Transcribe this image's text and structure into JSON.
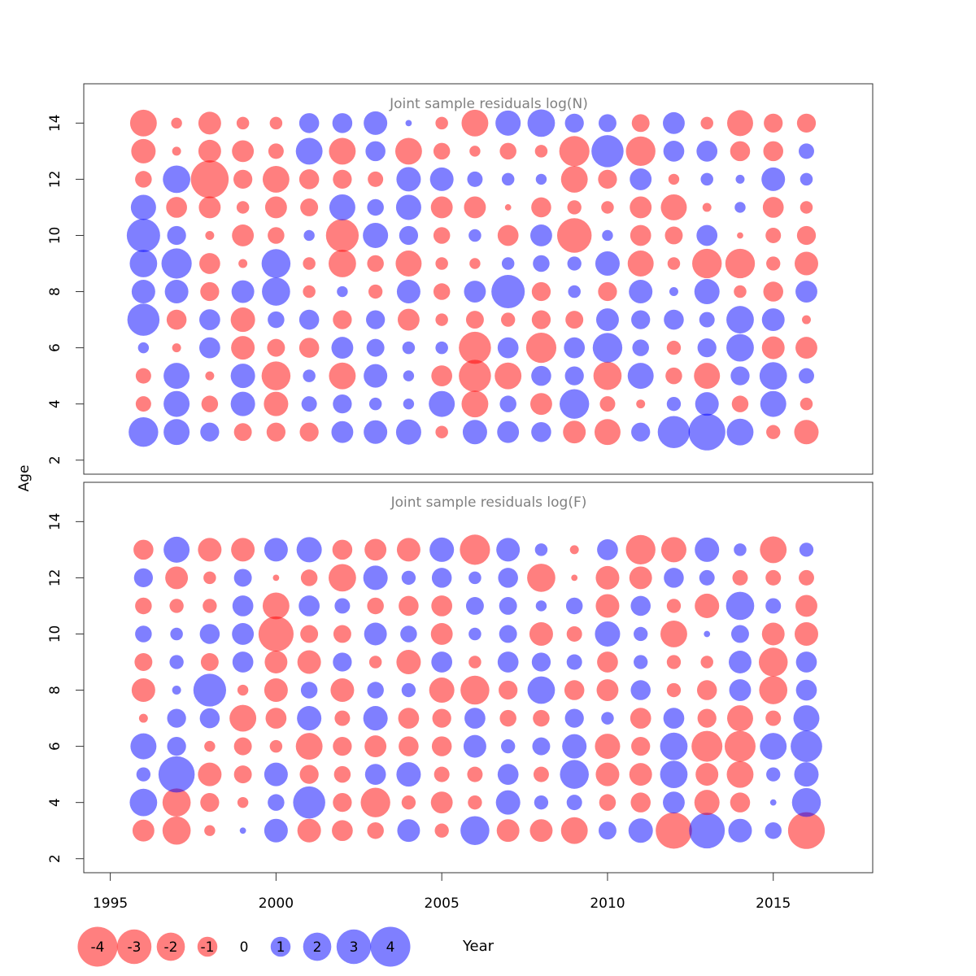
{
  "chart_data": [
    {
      "type": "scatter",
      "subtype": "bubble",
      "title": "Joint sample residuals log(N)",
      "years": [
        1996,
        1997,
        1998,
        1999,
        2000,
        2001,
        2002,
        2003,
        2004,
        2005,
        2006,
        2007,
        2008,
        2009,
        2010,
        2011,
        2012,
        2013,
        2014,
        2015,
        2016
      ],
      "ages": [
        3,
        4,
        5,
        6,
        7,
        8,
        9,
        10,
        11,
        12,
        13,
        14
      ],
      "ylim": [
        1.5,
        15.4
      ],
      "yticks": [
        2,
        4,
        6,
        8,
        10,
        12,
        14
      ],
      "residuals": [
        [
          2.2,
          -0.6,
          -0.6,
          0.3,
          2.6,
          1.4,
          1.9,
          2.8,
          1.6,
          -0.7,
          -1.5,
          -1.8
        ],
        [
          1.7,
          1.7,
          1.7,
          -0.2,
          -1.0,
          1.4,
          2.3,
          0.9,
          -1.1,
          1.9,
          -0.2,
          -0.3
        ],
        [
          0.9,
          -0.7,
          -0.2,
          1.1,
          1.1,
          -0.9,
          -1.1,
          -0.2,
          -1.2,
          -3.6,
          -1.3,
          -1.3
        ],
        [
          -0.8,
          1.5,
          1.5,
          -1.4,
          -1.5,
          1.3,
          -0.2,
          -1.2,
          -0.4,
          -0.9,
          -1.2,
          -0.4
        ],
        [
          -0.9,
          -1.5,
          -2.1,
          -0.8,
          0.7,
          2.0,
          2.1,
          -0.7,
          -1.2,
          -1.8,
          -0.6,
          -0.4
        ],
        [
          -0.9,
          0.6,
          0.4,
          -1.0,
          1.0,
          -0.4,
          -0.4,
          0.3,
          -0.8,
          -1.0,
          1.8,
          1.0
        ],
        [
          1.2,
          0.9,
          -1.8,
          1.2,
          -0.9,
          0.3,
          -1.9,
          -2.7,
          1.7,
          -0.9,
          -1.8,
          1.0
        ],
        [
          1.4,
          0.4,
          1.4,
          0.8,
          0.9,
          -0.5,
          -0.7,
          1.6,
          0.7,
          -0.6,
          1.0,
          1.4
        ],
        [
          1.6,
          0.3,
          0.3,
          0.4,
          -1.2,
          1.4,
          -1.7,
          0.9,
          1.6,
          1.5,
          -1.8,
          0.1
        ],
        [
          -0.4,
          1.7,
          -1.1,
          0.4,
          -0.4,
          -0.7,
          -0.4,
          -0.7,
          -1.2,
          1.4,
          -0.7,
          -0.4
        ],
        [
          1.5,
          -1.8,
          -2.6,
          -2.6,
          -0.8,
          1.2,
          -0.3,
          0.4,
          -1.2,
          0.6,
          -0.3,
          -1.8
        ],
        [
          1.2,
          0.7,
          -1.8,
          1.1,
          -0.5,
          2.8,
          0.4,
          -1.1,
          -0.1,
          0.4,
          -0.7,
          1.6
        ],
        [
          1.0,
          -1.2,
          1.0,
          -2.3,
          -0.9,
          -0.9,
          0.7,
          1.2,
          -1.0,
          0.3,
          -0.4,
          1.9
        ],
        [
          -1.3,
          2.2,
          0.9,
          1.1,
          -0.8,
          0.4,
          0.5,
          -3.0,
          -0.5,
          -1.8,
          -2.3,
          0.9
        ],
        [
          -1.7,
          -0.6,
          -2.0,
          2.2,
          1.3,
          -0.9,
          1.5,
          0.3,
          -0.4,
          -0.9,
          2.6,
          0.8
        ],
        [
          0.9,
          -0.2,
          1.7,
          0.7,
          0.9,
          1.4,
          -1.7,
          -1.1,
          -1.2,
          1.2,
          -2.2,
          -0.8
        ],
        [
          2.6,
          0.5,
          -0.7,
          -0.5,
          1.0,
          0.2,
          -0.4,
          -0.8,
          -1.7,
          -0.3,
          1.1,
          1.2
        ],
        [
          3.4,
          1.4,
          -1.7,
          0.9,
          0.6,
          1.6,
          -2.2,
          1.1,
          -0.2,
          0.4,
          1.1,
          -0.4
        ],
        [
          1.8,
          -0.7,
          0.9,
          1.9,
          1.9,
          -0.4,
          -2.2,
          -0.1,
          0.3,
          0.2,
          -1.0,
          -1.7
        ],
        [
          -0.5,
          1.7,
          1.9,
          -1.3,
          1.3,
          -1.0,
          -0.5,
          -0.6,
          -1.1,
          1.4,
          -1.0,
          -0.9
        ],
        [
          -1.5,
          -0.4,
          0.6,
          -1.2,
          -0.2,
          1.2,
          -1.4,
          -0.9,
          -0.4,
          0.4,
          0.6,
          -0.9
        ]
      ]
    },
    {
      "type": "scatter",
      "subtype": "bubble",
      "title": "Joint sample residuals log(F)",
      "years": [
        1996,
        1997,
        1998,
        1999,
        2000,
        2001,
        2002,
        2003,
        2004,
        2005,
        2006,
        2007,
        2008,
        2009,
        2010,
        2011,
        2012,
        2013,
        2014,
        2015,
        2016
      ],
      "ages": [
        3,
        4,
        5,
        6,
        7,
        8,
        9,
        10,
        11,
        12,
        13
      ],
      "ylim": [
        1.5,
        15.4
      ],
      "yticks": [
        2,
        4,
        6,
        8,
        10,
        12,
        14
      ],
      "residuals": [
        [
          -1.2,
          1.9,
          0.5,
          1.7,
          -0.2,
          -1.4,
          -0.8,
          0.7,
          -0.7,
          0.9,
          -1.0
        ],
        [
          -2.0,
          -2.0,
          3.3,
          0.9,
          0.9,
          0.2,
          0.5,
          0.4,
          -0.5,
          -1.3,
          1.7
        ],
        [
          -0.3,
          -0.9,
          -1.4,
          -0.3,
          1.0,
          2.7,
          -0.8,
          1.0,
          -0.5,
          -0.4,
          -1.4
        ],
        [
          0.1,
          -0.3,
          -0.8,
          -0.8,
          -1.8,
          -0.3,
          1.1,
          1.2,
          1.1,
          0.8,
          -1.4
        ],
        [
          1.4,
          0.7,
          1.4,
          -0.4,
          -1.1,
          -1.4,
          -1.3,
          -3.1,
          -1.8,
          -0.1,
          1.4
        ],
        [
          -1.4,
          2.6,
          -0.9,
          -1.8,
          1.5,
          0.7,
          -1.4,
          -0.8,
          1.1,
          -0.7,
          1.6
        ],
        [
          -1.1,
          -0.9,
          -0.7,
          -0.9,
          -0.6,
          -1.4,
          0.9,
          -0.8,
          0.6,
          -1.9,
          -1.0
        ],
        [
          -0.7,
          -2.2,
          1.1,
          -1.2,
          1.5,
          0.7,
          -0.4,
          1.3,
          -0.7,
          1.5,
          -1.2
        ],
        [
          1.3,
          -0.5,
          1.5,
          -1.0,
          -1.1,
          0.5,
          -1.5,
          0.7,
          -1.0,
          0.5,
          -1.4
        ],
        [
          -0.5,
          -1.2,
          -0.6,
          -1.0,
          -0.9,
          -1.6,
          1.1,
          -1.2,
          -1.1,
          1.0,
          1.5
        ],
        [
          2.1,
          -0.5,
          -0.6,
          1.3,
          1.1,
          -2.1,
          -0.4,
          0.4,
          0.8,
          0.4,
          -2.3
        ],
        [
          -1.3,
          1.5,
          1.1,
          0.5,
          -0.7,
          -0.9,
          1.1,
          0.8,
          0.8,
          1.0,
          1.4
        ],
        [
          -1.3,
          0.5,
          -0.6,
          0.8,
          -0.7,
          1.9,
          0.9,
          -1.4,
          0.3,
          -2.0,
          0.4
        ],
        [
          -1.8,
          0.6,
          2.1,
          1.5,
          0.9,
          -1.0,
          0.6,
          -0.6,
          0.7,
          -0.1,
          -0.2
        ],
        [
          0.8,
          -0.7,
          -1.4,
          -1.6,
          0.4,
          -1.2,
          -1.1,
          1.6,
          -1.4,
          -1.4,
          1.1
        ],
        [
          1.5,
          -1.0,
          -1.3,
          -0.9,
          -1.1,
          1.0,
          0.5,
          0.5,
          1.0,
          -1.3,
          -2.2
        ],
        [
          -3.3,
          1.2,
          1.9,
          1.9,
          1.1,
          -0.5,
          -0.5,
          -1.8,
          -0.5,
          1.0,
          -1.6
        ],
        [
          3.2,
          -1.6,
          -1.3,
          -2.4,
          -0.9,
          -1.0,
          -0.4,
          0.1,
          -1.5,
          0.6,
          1.5
        ],
        [
          1.4,
          -1.0,
          -1.8,
          -2.4,
          -1.7,
          1.2,
          1.3,
          0.8,
          2.0,
          -0.6,
          0.4
        ],
        [
          0.7,
          0.1,
          0.5,
          1.8,
          -0.6,
          -2.0,
          -2.1,
          -1.3,
          0.6,
          -0.6,
          -1.8
        ],
        [
          -3.4,
          2.1,
          1.5,
          2.5,
          1.7,
          1.1,
          1.1,
          -1.4,
          -1.2,
          -0.6,
          0.5
        ]
      ]
    }
  ],
  "axes": {
    "xlabel": "Year",
    "ylabel": "Age",
    "xlim": [
      1994.2,
      2018.0
    ],
    "xticks": [
      1995,
      2000,
      2005,
      2010,
      2015
    ],
    "xtick_labels": [
      "1995",
      "2000",
      "2005",
      "2010",
      "2015"
    ]
  },
  "legend": {
    "placement": "bottom-left",
    "items": [
      {
        "value": -4,
        "label": "-4"
      },
      {
        "value": -3,
        "label": "-3"
      },
      {
        "value": -2,
        "label": "-2"
      },
      {
        "value": -1,
        "label": "-1"
      },
      {
        "value": 0,
        "label": "0"
      },
      {
        "value": 1,
        "label": "1"
      },
      {
        "value": 2,
        "label": "2"
      },
      {
        "value": 3,
        "label": "3"
      },
      {
        "value": 4,
        "label": "4"
      }
    ]
  },
  "colors": {
    "negative": "#ff0000",
    "positive": "#0000ff",
    "bubble_opacity": 0.5,
    "title": "#808080",
    "axis": "#333333",
    "text": "#000000"
  }
}
